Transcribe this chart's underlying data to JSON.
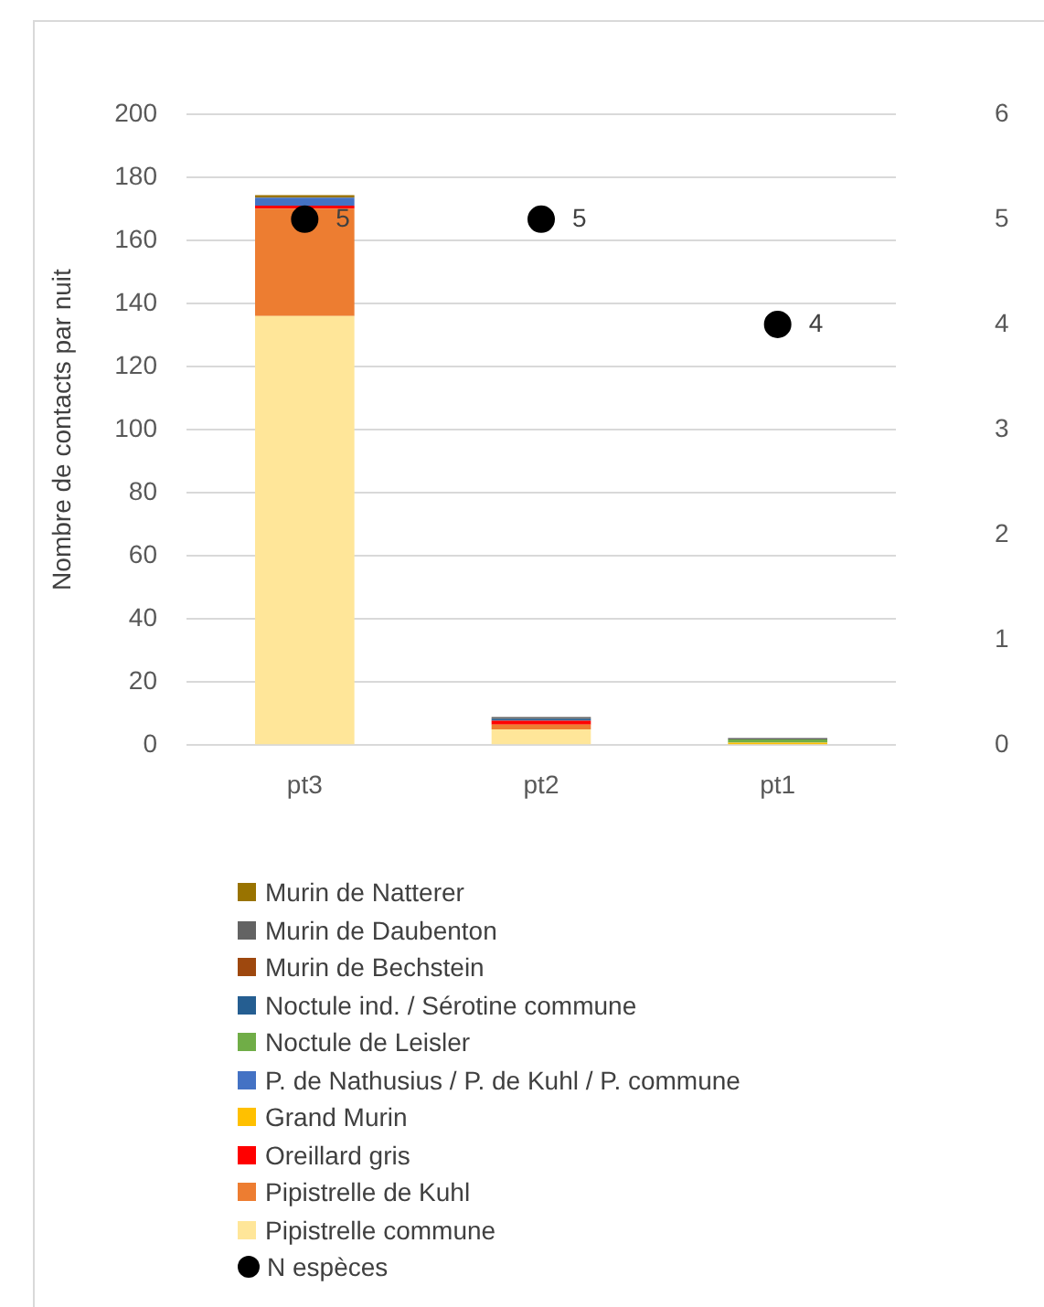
{
  "chart_data": {
    "type": "bar",
    "stacked": true,
    "ylabel": "Nombre de contacts par nuit",
    "categories": [
      "pt3",
      "pt2",
      "pt1"
    ],
    "series": [
      {
        "name": "Pipistrelle commune",
        "color": "#ffe699",
        "values": [
          136,
          5,
          0.3
        ]
      },
      {
        "name": "Pipistrelle de Kuhl",
        "color": "#ed7d31",
        "values": [
          34,
          1.5,
          null
        ]
      },
      {
        "name": "Oreillard gris",
        "color": "#ff0000",
        "values": [
          1,
          1.2,
          null
        ]
      },
      {
        "name": "Grand Murin",
        "color": "#ffc000",
        "values": [
          null,
          null,
          0.5
        ]
      },
      {
        "name": "P. de Nathusius / P. de Kuhl / P. commune",
        "color": "#4472c4",
        "values": [
          2.5,
          null,
          null
        ]
      },
      {
        "name": "Noctule de Leisler",
        "color": "#70ad47",
        "values": [
          null,
          null,
          1
        ]
      },
      {
        "name": "Noctule ind. / Sérotine commune",
        "color": "#255e91",
        "values": [
          null,
          0.6,
          null
        ]
      },
      {
        "name": "Murin de Bechstein",
        "color": "#9e480e",
        "values": [
          null,
          null,
          null
        ]
      },
      {
        "name": "Murin de Daubenton",
        "color": "#636363",
        "values": [
          null,
          0.6,
          0.4
        ]
      },
      {
        "name": "Murin de Natterer",
        "color": "#997300",
        "values": [
          0.8,
          null,
          null
        ]
      },
      {
        "name": "N espèces",
        "type": "scatter",
        "axis": "y2",
        "color": "#000000",
        "x": [
          "pt3",
          "pt2",
          "pt1"
        ],
        "values": [
          5,
          5,
          4
        ],
        "value_labels": [
          "5",
          "5",
          "4"
        ]
      }
    ],
    "ylim": [
      0,
      200
    ],
    "yticks": [
      0,
      20,
      40,
      60,
      80,
      100,
      120,
      140,
      160,
      180,
      200
    ],
    "y2lim": [
      0,
      6
    ],
    "y2ticks": [
      0,
      1,
      2,
      3,
      4,
      5,
      6
    ],
    "grid": "y",
    "legend": "bottom",
    "marker": "circle"
  }
}
